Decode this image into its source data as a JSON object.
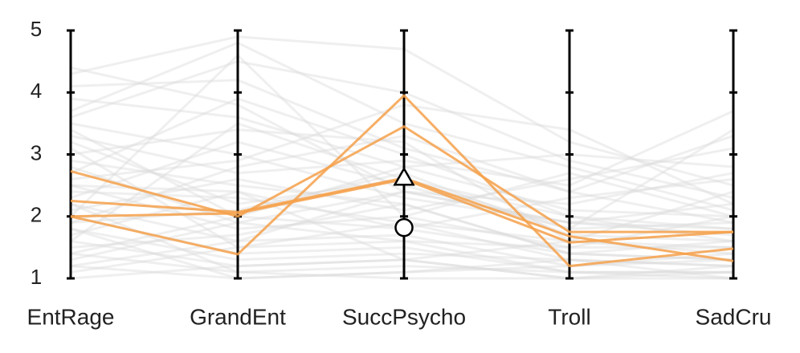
{
  "chart_data": {
    "type": "parallel_coordinates",
    "axes": [
      "EntRage",
      "GrandEnt",
      "SuccPsycho",
      "Troll",
      "SadCru"
    ],
    "y_ticks": [
      "1",
      "2",
      "3",
      "4",
      "5"
    ],
    "ylim": [
      1,
      5
    ],
    "background_color": "#dcdcdc",
    "highlight_color": "#f5a04a",
    "background_series": [
      [
        4.3,
        4.9,
        4.7,
        3.2,
        2.5
      ],
      [
        4.1,
        4.2,
        3.1,
        2.4,
        3.3
      ],
      [
        3.9,
        3.6,
        2.8,
        2.1,
        2.0
      ],
      [
        3.7,
        4.8,
        3.5,
        2.8,
        2.1
      ],
      [
        3.5,
        3.0,
        2.3,
        1.9,
        1.8
      ],
      [
        3.3,
        2.7,
        2.9,
        2.5,
        3.7
      ],
      [
        3.2,
        2.2,
        2.6,
        2.0,
        1.6
      ],
      [
        3.0,
        3.4,
        3.2,
        1.6,
        2.4
      ],
      [
        2.9,
        2.5,
        2.2,
        1.4,
        1.3
      ],
      [
        2.8,
        1.9,
        2.4,
        2.2,
        2.7
      ],
      [
        2.6,
        2.9,
        3.8,
        3.4,
        2.2
      ],
      [
        2.5,
        1.8,
        2.0,
        1.5,
        1.5
      ],
      [
        2.4,
        2.3,
        1.9,
        1.3,
        1.2
      ],
      [
        2.3,
        3.2,
        2.5,
        1.8,
        1.9
      ],
      [
        2.2,
        1.6,
        1.7,
        1.2,
        1.4
      ],
      [
        2.1,
        2.6,
        2.1,
        2.6,
        3.1
      ],
      [
        2.0,
        1.4,
        1.5,
        1.1,
        1.1
      ],
      [
        1.9,
        2.1,
        2.7,
        1.7,
        1.6
      ],
      [
        1.8,
        1.3,
        1.4,
        1.3,
        1.2
      ],
      [
        1.7,
        2.4,
        1.8,
        2.3,
        2.6
      ],
      [
        1.6,
        1.2,
        1.3,
        1.0,
        1.0
      ],
      [
        1.5,
        1.7,
        2.2,
        1.4,
        1.3
      ],
      [
        1.4,
        1.1,
        1.2,
        1.1,
        1.1
      ],
      [
        1.3,
        1.9,
        1.6,
        1.5,
        2.0
      ],
      [
        1.2,
        1.0,
        1.1,
        1.2,
        1.3
      ],
      [
        1.1,
        1.5,
        1.9,
        1.6,
        1.5
      ],
      [
        1.0,
        1.2,
        1.3,
        1.0,
        1.1
      ],
      [
        4.4,
        3.8,
        2.4,
        1.9,
        1.7
      ],
      [
        3.6,
        4.5,
        4.0,
        2.9,
        2.3
      ],
      [
        2.7,
        3.9,
        3.0,
        2.0,
        1.8
      ],
      [
        1.9,
        2.8,
        3.3,
        2.4,
        1.9
      ],
      [
        1.4,
        2.0,
        2.8,
        3.0,
        2.8
      ],
      [
        3.1,
        1.5,
        1.6,
        1.1,
        1.0
      ],
      [
        2.2,
        1.1,
        1.0,
        1.0,
        1.2
      ],
      [
        1.6,
        3.5,
        2.6,
        1.8,
        3.4
      ],
      [
        2.5,
        2.4,
        1.3,
        1.6,
        1.4
      ],
      [
        1.2,
        1.6,
        2.4,
        1.9,
        2.2
      ],
      [
        3.4,
        2.0,
        1.8,
        1.4,
        1.6
      ],
      [
        1.8,
        1.0,
        1.1,
        1.3,
        1.0
      ],
      [
        2.0,
        4.6,
        2.0,
        2.7,
        2.0
      ]
    ],
    "highlight_series": [
      [
        2.73,
        2.0,
        3.45,
        1.75,
        1.75
      ],
      [
        2.25,
        2.07,
        2.62,
        1.68,
        1.28
      ],
      [
        2.0,
        2.05,
        2.6,
        1.58,
        1.75
      ],
      [
        2.0,
        1.39,
        3.95,
        1.2,
        1.48
      ]
    ],
    "markers": [
      {
        "axis": "SuccPsycho",
        "value": 2.6,
        "shape": "triangle"
      },
      {
        "axis": "SuccPsycho",
        "value": 1.82,
        "shape": "circle"
      }
    ]
  }
}
